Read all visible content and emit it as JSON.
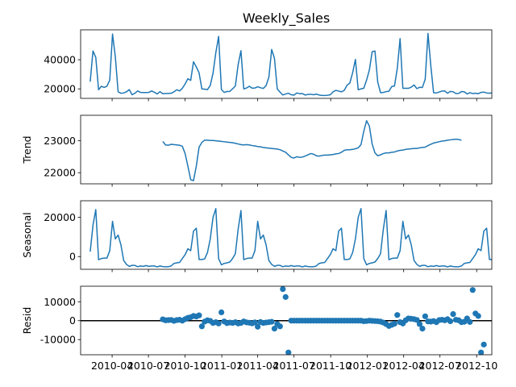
{
  "chart_data": [
    {
      "type": "line",
      "title": "Weekly_Sales",
      "ylabel": "",
      "ylim": [
        13500,
        60500
      ],
      "yticks": [
        20000,
        40000
      ],
      "x_start": "2010-02-05",
      "x_step_days": 7,
      "xlim": [
        "2010-01-12",
        "2012-11-08"
      ],
      "series": [
        {
          "color": "#1f77b4",
          "values": [
            24900,
            46000,
            41600,
            19400,
            21800,
            21000,
            21800,
            26000,
            57600,
            42000,
            18000,
            17000,
            17200,
            18000,
            19500,
            16000,
            17000,
            18600,
            17600,
            17500,
            17500,
            17600,
            18600,
            17700,
            16500,
            18100,
            16700,
            16800,
            16900,
            17000,
            18000,
            19400,
            18600,
            20400,
            23400,
            27000,
            25800,
            38600,
            35100,
            31000,
            20000,
            19800,
            19500,
            22400,
            30800,
            44800,
            56000,
            19600,
            17600,
            18200,
            18300,
            20000,
            22000,
            36700,
            46200,
            20000,
            20600,
            21800,
            20500,
            20600,
            21500,
            20800,
            20300,
            22300,
            28000,
            47000,
            41000,
            20000,
            17800,
            15800,
            16500,
            17000,
            16000,
            15700,
            17200,
            16700,
            16800,
            15800,
            16200,
            16300,
            16000,
            16400,
            15800,
            15500,
            15500,
            15600,
            16000,
            18000,
            19000,
            18500,
            18000,
            19000,
            22500,
            24000,
            31000,
            40200,
            19400,
            20000,
            20500,
            26000,
            33000,
            45500,
            46000,
            24600,
            17400,
            17600,
            18100,
            18400,
            21600,
            22000,
            34000,
            54500,
            20400,
            20400,
            20400,
            21200,
            22700,
            20200,
            21100,
            21000,
            26700,
            58000,
            36000,
            17400,
            17200,
            17800,
            18500,
            18600,
            17000,
            18300,
            18000,
            16800,
            16900,
            18200,
            18000,
            16500,
            17400,
            16800,
            17000,
            16700,
            17600,
            17800,
            17200,
            17000,
            17300,
            18500,
            19200,
            18800,
            18800,
            21300,
            21800,
            22500,
            24000,
            27500
          ]
        }
      ]
    },
    {
      "type": "line",
      "title": "",
      "ylabel": "Trend",
      "ylim": [
        21650,
        23800
      ],
      "yticks": [
        22000,
        23000
      ],
      "x_start": "2010-02-05",
      "x_step_days": 7,
      "series": [
        {
          "color": "#1f77b4",
          "values": [
            null,
            null,
            null,
            null,
            null,
            null,
            null,
            null,
            null,
            null,
            null,
            null,
            null,
            null,
            null,
            null,
            null,
            null,
            null,
            null,
            null,
            null,
            null,
            null,
            null,
            null,
            22980,
            22870,
            22860,
            22890,
            22880,
            22870,
            22860,
            22830,
            22600,
            22200,
            21780,
            21750,
            22200,
            22800,
            22950,
            23020,
            23020,
            23010,
            23010,
            23000,
            22990,
            22980,
            22970,
            22960,
            22950,
            22940,
            22920,
            22900,
            22880,
            22870,
            22880,
            22870,
            22850,
            22840,
            22820,
            22810,
            22790,
            22780,
            22770,
            22760,
            22750,
            22740,
            22720,
            22680,
            22640,
            22560,
            22480,
            22460,
            22500,
            22480,
            22490,
            22520,
            22560,
            22600,
            22580,
            22530,
            22520,
            22540,
            22550,
            22550,
            22560,
            22570,
            22590,
            22600,
            22640,
            22700,
            22720,
            22720,
            22730,
            22750,
            22780,
            22880,
            23300,
            23630,
            23460,
            22900,
            22620,
            22530,
            22560,
            22600,
            22620,
            22620,
            22640,
            22650,
            22680,
            22700,
            22710,
            22730,
            22740,
            22750,
            22760,
            22760,
            22780,
            22790,
            22800,
            22850,
            22890,
            22930,
            22950,
            22970,
            22990,
            23000,
            23020,
            23030,
            23040,
            23050,
            23040,
            23020,
            null,
            null,
            null,
            null,
            null,
            null,
            null,
            null,
            null,
            null,
            null,
            null,
            null,
            null,
            null,
            null,
            null,
            null,
            null,
            null,
            null,
            null,
            null,
            null,
            null,
            null
          ]
        }
      ]
    },
    {
      "type": "line",
      "title": "",
      "ylabel": "Seasonal",
      "ylim": [
        -6500,
        28500
      ],
      "yticks": [
        0,
        20000
      ],
      "x_start": "2010-02-05",
      "x_step_days": 7,
      "series": [
        {
          "color": "#1f77b4",
          "values": [
            2500,
            16000,
            24000,
            -1600,
            -1000,
            -800,
            -800,
            3000,
            18000,
            9000,
            11000,
            6000,
            -2000,
            -4000,
            -5000,
            -4500,
            -4500,
            -5200,
            -4800,
            -5000,
            -4600,
            -5000,
            -4800,
            -4800,
            -5300,
            -4800,
            -5100,
            -5200,
            -5200,
            -4800,
            -3500,
            -3200,
            -3000,
            -1000,
            1000,
            4000,
            3000,
            13000,
            14500,
            -1500,
            -1500,
            -1200,
            2000,
            9000,
            20000,
            24500,
            -1000,
            -4200,
            -3500,
            -3200,
            -2800,
            -1000,
            1500,
            14000,
            23500,
            -1600,
            -1000,
            -800,
            -800,
            3000,
            18000,
            9000,
            11000,
            6000,
            -2000,
            -4000,
            -5000,
            -4500,
            -4500,
            -5200,
            -4800,
            -5000,
            -4600,
            -5000,
            -4800,
            -4800,
            -5300,
            -4800,
            -5100,
            -5200,
            -5200,
            -4800,
            -3500,
            -3200,
            -3000,
            -1000,
            1000,
            4000,
            3000,
            13000,
            14500,
            -1500,
            -1500,
            -1200,
            2000,
            9000,
            20000,
            24500,
            -1000,
            -4200,
            -3500,
            -3200,
            -2800,
            -1000,
            1500,
            14000,
            23500,
            -1600,
            -1000,
            -800,
            -800,
            3000,
            18000,
            9000,
            11000,
            6000,
            -2000,
            -4000,
            -5000,
            -4500,
            -4500,
            -5200,
            -4800,
            -5000,
            -4600,
            -5000,
            -4800,
            -4800,
            -5300,
            -4800,
            -5100,
            -5200,
            -5200,
            -4800,
            -3500,
            -3200,
            -3000,
            -1000,
            1000,
            4000,
            3000,
            13000,
            14500,
            -1500,
            -1500,
            -1200,
            2000,
            9000,
            20000,
            24500,
            -1000,
            -4200,
            -3500,
            -3200,
            -2800,
            -1000,
            1500,
            14000
          ]
        }
      ]
    },
    {
      "type": "scatter",
      "title": "",
      "ylabel": "Resid",
      "ylim": [
        -18000,
        18200
      ],
      "yticks": [
        -10000,
        0,
        10000
      ],
      "x_start": "2010-02-05",
      "x_step_days": 7,
      "xtick_labels": [
        "2010-04",
        "2010-07",
        "2010-10",
        "2011-01",
        "2011-04",
        "2011-07",
        "2011-10",
        "2012-01",
        "2012-04",
        "2012-07",
        "2012-10"
      ],
      "xtick_dates": [
        "2010-04-01",
        "2010-07-01",
        "2010-10-01",
        "2011-01-01",
        "2011-04-01",
        "2011-07-01",
        "2011-10-01",
        "2012-01-01",
        "2012-04-01",
        "2012-07-01",
        "2012-10-01"
      ],
      "zero_line": true,
      "series": [
        {
          "color": "#1f77b4",
          "values": [
            null,
            null,
            null,
            null,
            null,
            null,
            null,
            null,
            null,
            null,
            null,
            null,
            null,
            null,
            null,
            null,
            null,
            null,
            null,
            null,
            null,
            null,
            null,
            null,
            null,
            null,
            700,
            200,
            300,
            400,
            -100,
            300,
            500,
            0,
            800,
            1500,
            1800,
            2500,
            2200,
            2800,
            -3000,
            -500,
            200,
            -100,
            -1200,
            -800,
            -1500,
            4400,
            -400,
            -1300,
            -1000,
            -1200,
            -800,
            -1500,
            -1200,
            -400,
            -900,
            -1100,
            -1400,
            -900,
            -3200,
            -700,
            -1200,
            -1000,
            -800,
            -600,
            -4200,
            -1800,
            -3000,
            16700,
            12500,
            -16800,
            0,
            0,
            0,
            0,
            0,
            0,
            0,
            0,
            0,
            0,
            0,
            0,
            0,
            0,
            0,
            0,
            0,
            0,
            0,
            0,
            0,
            0,
            0,
            0,
            0,
            0,
            -300,
            -200,
            0,
            -100,
            -200,
            -300,
            -500,
            -1000,
            -1800,
            -2800,
            -2200,
            -1600,
            3000,
            -800,
            -1500,
            200,
            1200,
            1000,
            800,
            400,
            -1800,
            -4200,
            2300,
            -400,
            -500,
            -200,
            -800,
            300,
            500,
            200,
            800,
            -300,
            3500,
            500,
            200,
            -800,
            -600,
            1200,
            -700,
            16200,
            3800,
            2500,
            -16800,
            -12600,
            null,
            null,
            null,
            null,
            null,
            null,
            null,
            null,
            null,
            null,
            null,
            null,
            null,
            null,
            null,
            null,
            null,
            null,
            null,
            null,
            null,
            null,
            null,
            null,
            null
          ]
        }
      ]
    }
  ]
}
